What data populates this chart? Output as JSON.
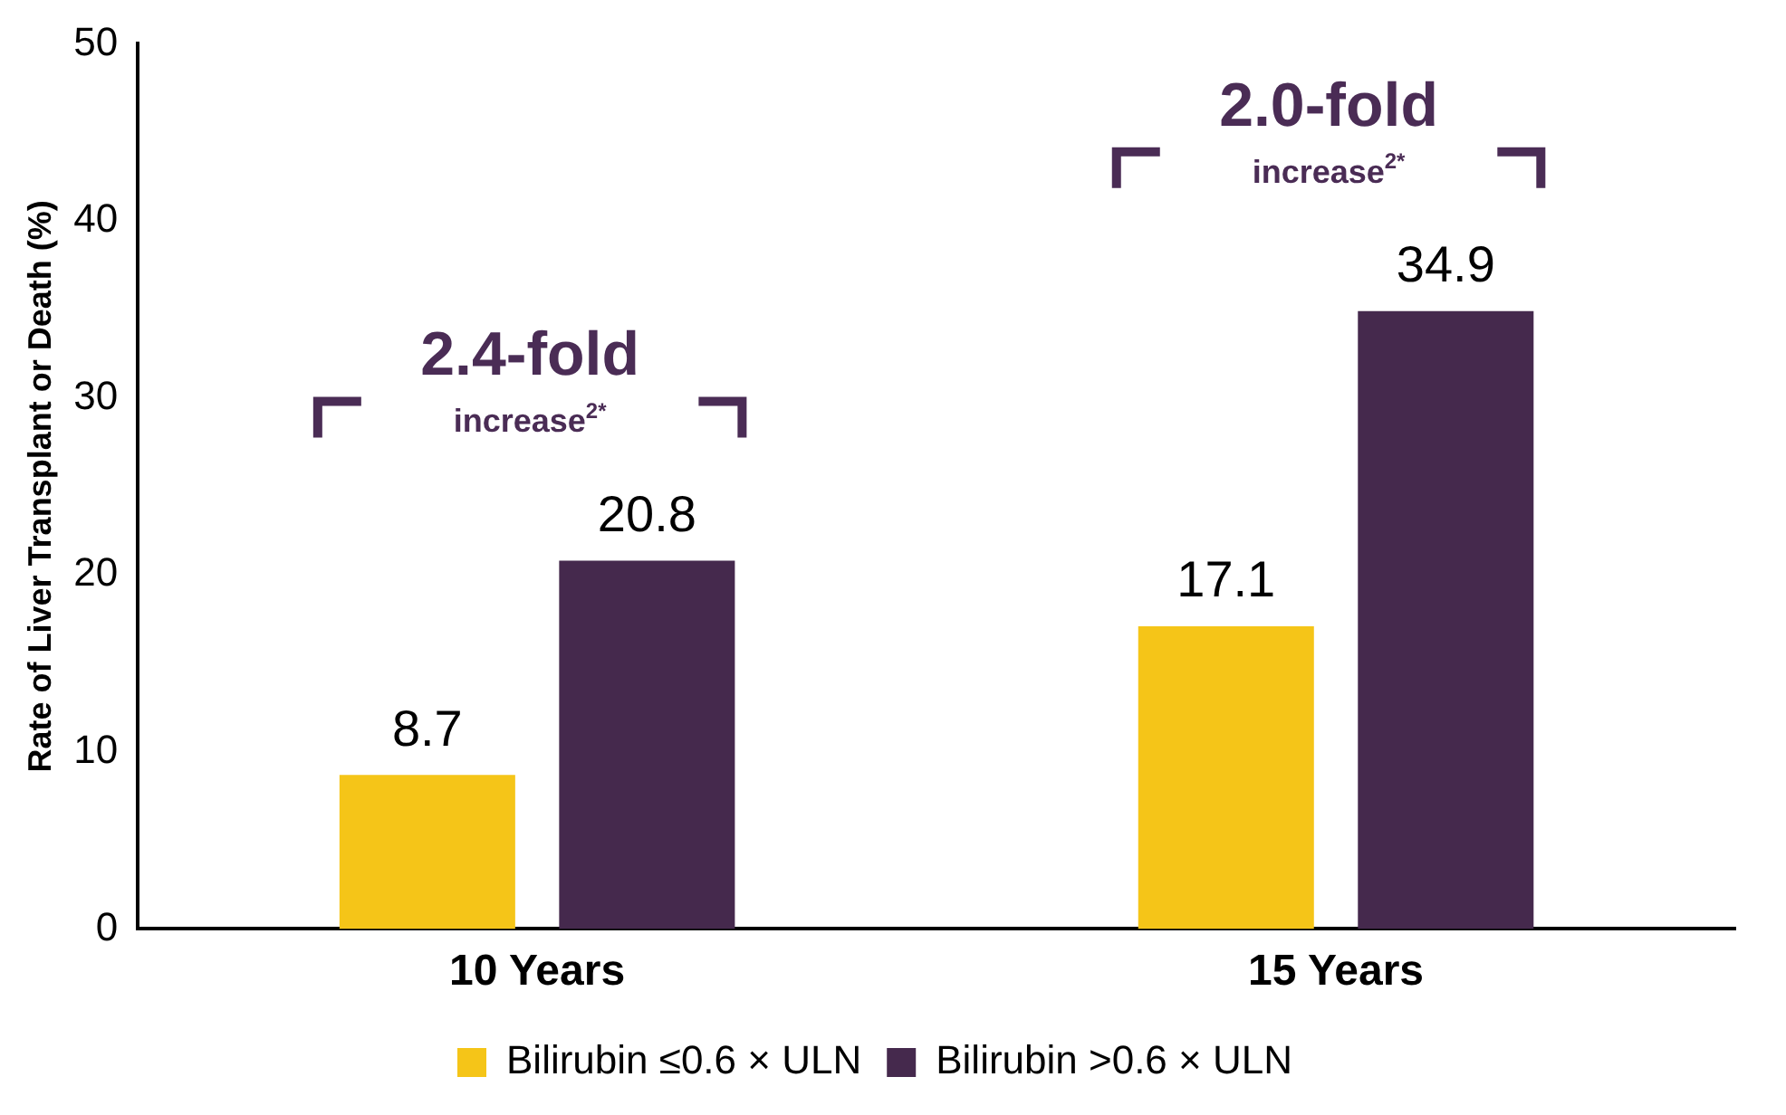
{
  "chart_data": {
    "type": "bar",
    "ylabel": "Rate of Liver Transplant or Death (%)",
    "categories": [
      "10 Years",
      "15 Years"
    ],
    "series": [
      {
        "name": "Bilirubin ≤0.6 × ULN",
        "color": "#f5c518",
        "values": [
          8.7,
          17.1
        ]
      },
      {
        "name": "Bilirubin >0.6 × ULN",
        "color": "#45294d",
        "values": [
          20.8,
          34.9
        ]
      }
    ],
    "ylim": [
      0,
      50
    ],
    "yticks": [
      0,
      10,
      20,
      30,
      40,
      50
    ],
    "grid": false,
    "legend": "bottom",
    "data_labels": true,
    "annotations": [
      "2.4-fold",
      "increase$^{2*}$",
      "2.0-fold",
      "increase$^{2*}$"
    ]
  }
}
